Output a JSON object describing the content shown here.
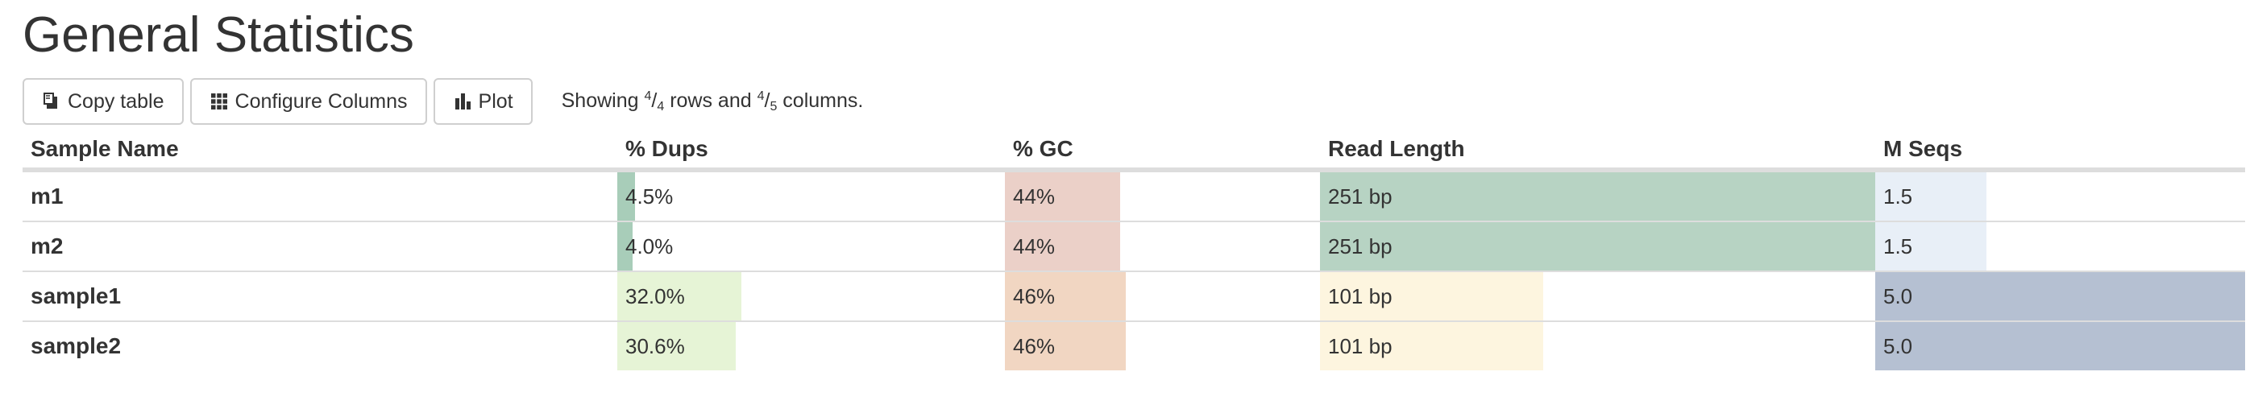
{
  "title": "General Statistics",
  "toolbar": {
    "copy_label": "Copy table",
    "configure_label": "Configure Columns",
    "plot_label": "Plot",
    "showing": {
      "prefix": "Showing ",
      "rows_shown": "4",
      "rows_total": "4",
      "middle": " rows and ",
      "cols_shown": "4",
      "cols_total": "5",
      "suffix": " columns."
    }
  },
  "columns": [
    "Sample Name",
    "% Dups",
    "% GC",
    "Read Length",
    "M Seqs"
  ],
  "rows": [
    {
      "name": "m1",
      "dups": "4.5%",
      "gc": "44%",
      "readlen": "251 bp",
      "mseqs": "1.5"
    },
    {
      "name": "m2",
      "dups": "4.0%",
      "gc": "44%",
      "readlen": "251 bp",
      "mseqs": "1.5"
    },
    {
      "name": "sample1",
      "dups": "32.0%",
      "gc": "46%",
      "readlen": "101 bp",
      "mseqs": "5.0"
    },
    {
      "name": "sample2",
      "dups": "30.6%",
      "gc": "46%",
      "readlen": "101 bp",
      "mseqs": "5.0"
    }
  ],
  "bar_fractions": {
    "dups": [
      0.045,
      0.04,
      0.32,
      0.306
    ],
    "gc": [
      0.366,
      0.366,
      0.383,
      0.383
    ],
    "readlen": [
      1.0,
      1.0,
      0.402,
      0.402
    ],
    "mseqs": [
      0.3,
      0.3,
      1.0,
      1.0
    ]
  },
  "bar_colors": {
    "dups": [
      "#a8cdb9",
      "#a8cdb9",
      "#e6f4d6",
      "#e6f4d6"
    ],
    "gc": [
      "#ebd0c8",
      "#ebd0c8",
      "#f1d6c2",
      "#f1d6c2"
    ],
    "readlen": [
      "#b7d3c3",
      "#b7d3c3",
      "#fdf5df",
      "#fdf5df"
    ],
    "mseqs": [
      "#e8eff7",
      "#e8eff7",
      "#b5c0d2",
      "#b5c0d2"
    ]
  },
  "icons": {
    "copy": "copy-icon",
    "configure": "grid-icon",
    "plot": "bar-chart-icon"
  }
}
